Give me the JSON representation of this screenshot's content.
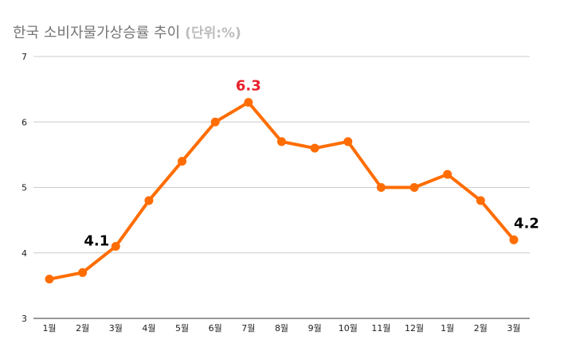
{
  "chart_data": {
    "type": "line",
    "title": "한국 소비자물가상승률 추이",
    "unit_label": "(단위:%)",
    "categories": [
      "1월",
      "2월",
      "3월",
      "4월",
      "5월",
      "6월",
      "7월",
      "8월",
      "9월",
      "10월",
      "11월",
      "12월",
      "1월",
      "2월",
      "3월"
    ],
    "series": [
      {
        "values": [
          3.6,
          3.7,
          4.1,
          4.8,
          5.4,
          6.0,
          6.3,
          5.7,
          5.6,
          5.7,
          5.0,
          5.0,
          5.2,
          4.8,
          4.2
        ],
        "color": "#ff6d00"
      }
    ],
    "ylim": [
      3,
      7
    ],
    "yticks": [
      "3",
      "4",
      "5",
      "6",
      "7"
    ],
    "grid": true,
    "annotations": [
      {
        "index": 2,
        "text": "4.1",
        "color": "#000000"
      },
      {
        "index": 6,
        "text": "6.3",
        "color": "#e8202a"
      },
      {
        "index": 14,
        "text": "4.2",
        "color": "#000000"
      }
    ]
  }
}
